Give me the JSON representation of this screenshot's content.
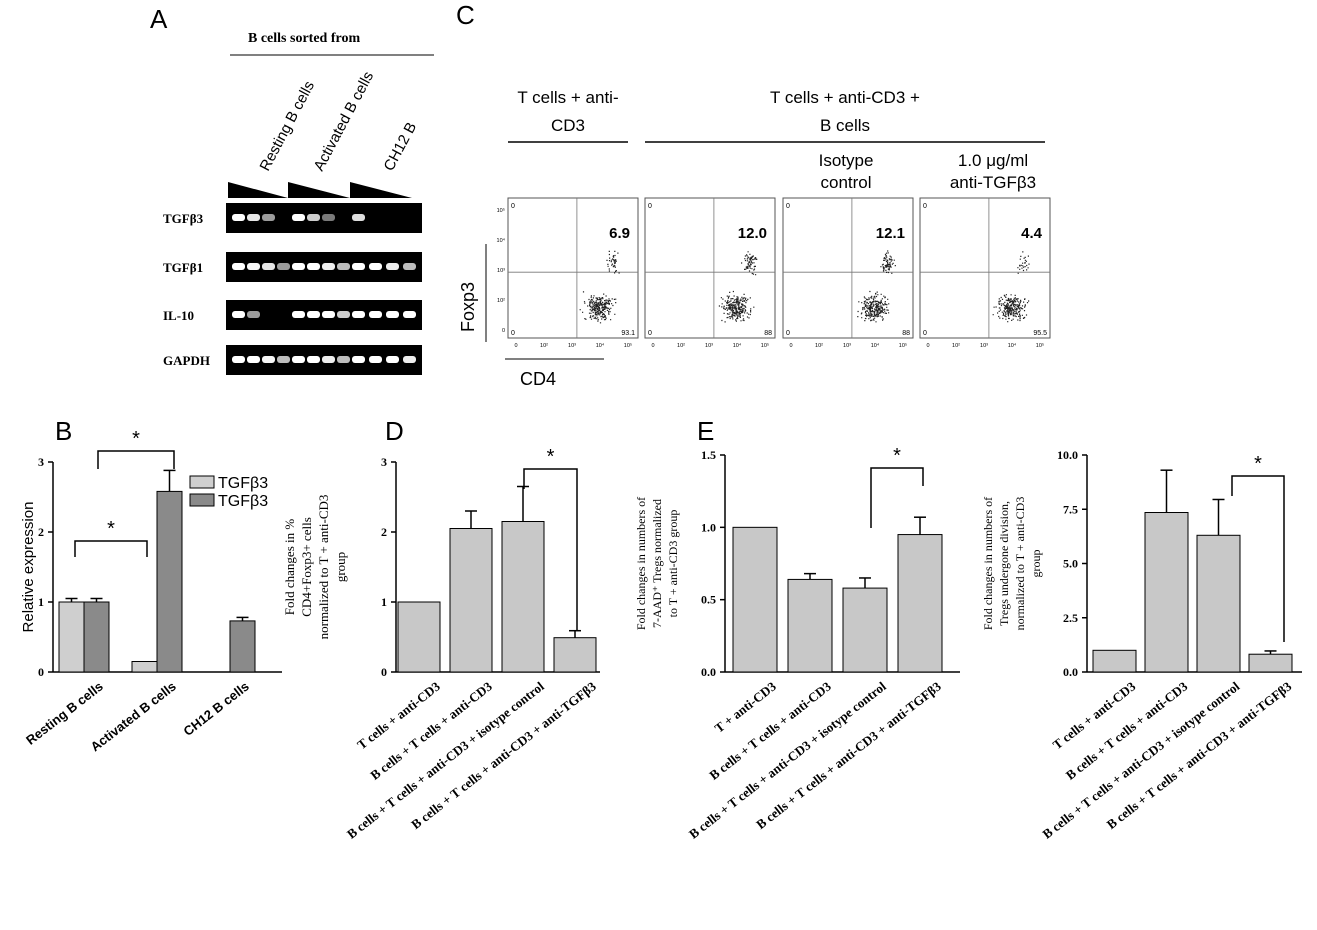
{
  "panel_labels": {
    "a": "A",
    "b": "B",
    "c": "C",
    "d": "D",
    "e": "E"
  },
  "panel_a": {
    "header": "B cells sorted from",
    "columns": [
      "Resting B cells",
      "Activated B cells",
      "CH12 B"
    ],
    "rows": [
      "TGFβ3",
      "TGFβ1",
      "IL-10",
      "GAPDH"
    ]
  },
  "panel_c": {
    "group1": [
      "T cells + anti-",
      "CD3"
    ],
    "group2": [
      "T cells + anti-CD3 +",
      "B cells"
    ],
    "sub1": [
      "Isotype",
      "control"
    ],
    "sub2": [
      "1.0 μg/ml",
      "anti-TGFβ3"
    ],
    "ylabel": "Foxp3",
    "xlabel": "CD4",
    "plots": [
      {
        "upper_right": "6.9",
        "lower_right": "93.1",
        "upper_left": "0",
        "lower_left": "0"
      },
      {
        "upper_right": "12.0",
        "lower_right": "88",
        "upper_left": "0",
        "lower_left": "0"
      },
      {
        "upper_right": "12.1",
        "lower_right": "88",
        "upper_left": "0",
        "lower_left": "0"
      },
      {
        "upper_right": "4.4",
        "lower_right": "95.5",
        "upper_left": "0",
        "lower_left": "0"
      }
    ],
    "xticks": [
      "0",
      "10²",
      "10³",
      "10⁴",
      "10⁵"
    ],
    "yticks": [
      "10⁵",
      "10⁴",
      "10³",
      "10²",
      "0"
    ]
  },
  "chart_data": [
    {
      "id": "B",
      "type": "bar",
      "categories": [
        "Resting B cells",
        "Activated B cells",
        "CH12 B cells"
      ],
      "series": [
        {
          "name": "TGFβ3",
          "values": [
            1.0,
            0.15,
            0.0
          ],
          "errors": [
            0.05,
            0.0,
            0.0
          ],
          "color": "#cfcfcf"
        },
        {
          "name": "TGFβ3",
          "values": [
            1.0,
            2.58,
            0.73
          ],
          "errors": [
            0.05,
            0.3,
            0.05
          ],
          "color": "#8a8a8a"
        }
      ],
      "ylabel": "Relative expression",
      "ylim": [
        0,
        3
      ],
      "yticks": [
        "0",
        "1",
        "2",
        "3"
      ],
      "significance": [
        "*",
        "*"
      ]
    },
    {
      "id": "D",
      "type": "bar",
      "categories": [
        "T cells + anti-CD3",
        "B cells + T cells + anti-CD3",
        "B cells + T cells + anti-CD3 + isotype control",
        "B cells + T cells + anti-CD3 + anti-TGFβ3"
      ],
      "values": [
        1.0,
        2.05,
        2.15,
        0.49
      ],
      "errors": [
        0.0,
        0.25,
        0.5,
        0.1
      ],
      "ylabel": [
        "Fold changes in %",
        "CD4+Foxp3+ cells",
        "normalized to T + anti-CD3",
        "group"
      ],
      "ylim": [
        0,
        3
      ],
      "yticks": [
        "0",
        "1",
        "2",
        "3"
      ],
      "significance": [
        "*"
      ]
    },
    {
      "id": "E1",
      "type": "bar",
      "categories": [
        "T + anti-CD3",
        "B cells + T cells + anti-CD3",
        "B cells + T cells + anti-CD3 + isotype control",
        "B cells + T cells + anti-CD3 + anti-TGFβ3"
      ],
      "values": [
        1.0,
        0.64,
        0.58,
        0.95
      ],
      "errors": [
        0.0,
        0.04,
        0.07,
        0.12
      ],
      "ylabel": [
        "Fold changes in numbers of",
        "7-AAD⁺ Tregs normalized",
        "to T + anti-CD3 group"
      ],
      "ylim": [
        0,
        1.5
      ],
      "yticks": [
        "0.0",
        "0.5",
        "1.0",
        "1.5"
      ],
      "significance": [
        "*"
      ]
    },
    {
      "id": "E2",
      "type": "bar",
      "categories": [
        "T cells + anti-CD3",
        "B cells + T cells + anti-CD3",
        "B cells + T cells + anti-CD3 + isotype control",
        "B cells + T cells + anti-CD3 + anti-TGFβ3"
      ],
      "values": [
        1.0,
        7.35,
        6.3,
        0.82
      ],
      "errors": [
        0.0,
        1.95,
        1.65,
        0.15
      ],
      "ylabel": [
        "Fold changes in numbers of",
        "Tregs undergone division,",
        "normalized to T + anti-CD3",
        "group"
      ],
      "ylim": [
        0,
        10
      ],
      "yticks": [
        "0.0",
        "2.5",
        "5.0",
        "7.5",
        "10.0"
      ],
      "significance": [
        "*"
      ]
    }
  ]
}
